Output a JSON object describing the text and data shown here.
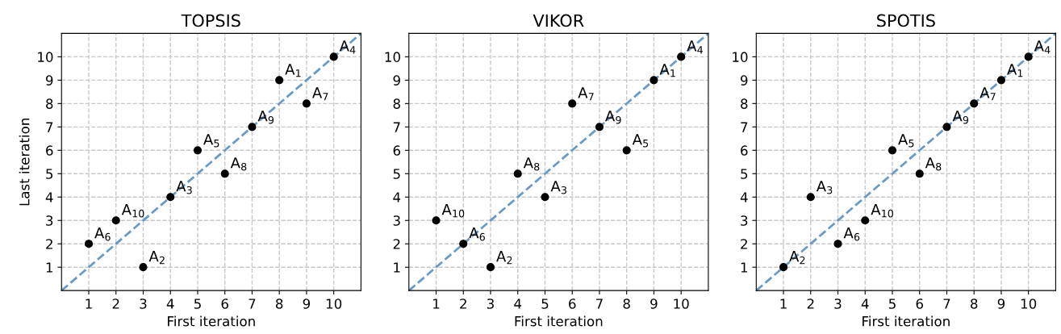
{
  "chart_data": [
    {
      "type": "scatter",
      "title": "TOPSIS",
      "xlabel": "First iteration",
      "ylabel": "Last iteration",
      "xlim": [
        0,
        11
      ],
      "ylim": [
        0,
        11
      ],
      "xticks": [
        1,
        2,
        3,
        4,
        5,
        6,
        7,
        8,
        9,
        10
      ],
      "yticks": [
        1,
        2,
        3,
        4,
        5,
        6,
        7,
        8,
        9,
        10
      ],
      "grid": true,
      "marker": "circle",
      "series": [
        {
          "type": "line",
          "color": "#6a9bc6",
          "line_style": "dashed",
          "marker": "none",
          "x": [
            0,
            11
          ],
          "values": [
            0,
            11
          ]
        },
        {
          "color": "#000000",
          "x": [
            1,
            2,
            3,
            4,
            5,
            6,
            7,
            8,
            9,
            10
          ],
          "values": [
            2,
            3,
            1,
            4,
            6,
            5,
            7,
            9,
            8,
            10
          ]
        }
      ],
      "annotations": [
        {
          "text": "A$_{6}$",
          "x": 1,
          "y": 2
        },
        {
          "text": "A$_{10}$",
          "x": 2,
          "y": 3
        },
        {
          "text": "A$_{2}$",
          "x": 3,
          "y": 1
        },
        {
          "text": "A$_{3}$",
          "x": 4,
          "y": 4
        },
        {
          "text": "A$_{5}$",
          "x": 5,
          "y": 6
        },
        {
          "text": "A$_{8}$",
          "x": 6,
          "y": 5
        },
        {
          "text": "A$_{9}$",
          "x": 7,
          "y": 7
        },
        {
          "text": "A$_{1}$",
          "x": 8,
          "y": 9
        },
        {
          "text": "A$_{7}$",
          "x": 9,
          "y": 8
        },
        {
          "text": "A$_{4}$",
          "x": 10,
          "y": 10
        }
      ]
    },
    {
      "type": "scatter",
      "title": "VIKOR",
      "xlabel": "First iteration",
      "xlim": [
        0,
        11
      ],
      "ylim": [
        0,
        11
      ],
      "xticks": [
        1,
        2,
        3,
        4,
        5,
        6,
        7,
        8,
        9,
        10
      ],
      "yticks": [
        1,
        2,
        3,
        4,
        5,
        6,
        7,
        8,
        9,
        10
      ],
      "grid": true,
      "marker": "circle",
      "series": [
        {
          "type": "line",
          "color": "#6a9bc6",
          "line_style": "dashed",
          "marker": "none",
          "x": [
            0,
            11
          ],
          "values": [
            0,
            11
          ]
        },
        {
          "color": "#000000",
          "x": [
            1,
            2,
            3,
            4,
            5,
            6,
            7,
            8,
            9,
            10
          ],
          "values": [
            3,
            2,
            1,
            5,
            4,
            8,
            7,
            6,
            9,
            10
          ]
        }
      ],
      "annotations": [
        {
          "text": "A$_{10}$",
          "x": 1,
          "y": 3
        },
        {
          "text": "A$_{6}$",
          "x": 2,
          "y": 2
        },
        {
          "text": "A$_{2}$",
          "x": 3,
          "y": 1
        },
        {
          "text": "A$_{8}$",
          "x": 4,
          "y": 5
        },
        {
          "text": "A$_{3}$",
          "x": 5,
          "y": 4
        },
        {
          "text": "A$_{7}$",
          "x": 6,
          "y": 8
        },
        {
          "text": "A$_{9}$",
          "x": 7,
          "y": 7
        },
        {
          "text": "A$_{5}$",
          "x": 8,
          "y": 6
        },
        {
          "text": "A$_{1}$",
          "x": 9,
          "y": 9
        },
        {
          "text": "A$_{4}$",
          "x": 10,
          "y": 10
        }
      ]
    },
    {
      "type": "scatter",
      "title": "SPOTIS",
      "xlabel": "First iteration",
      "xlim": [
        0,
        11
      ],
      "ylim": [
        0,
        11
      ],
      "xticks": [
        1,
        2,
        3,
        4,
        5,
        6,
        7,
        8,
        9,
        10
      ],
      "yticks": [
        1,
        2,
        3,
        4,
        5,
        6,
        7,
        8,
        9,
        10
      ],
      "grid": true,
      "marker": "circle",
      "series": [
        {
          "type": "line",
          "color": "#6a9bc6",
          "line_style": "dashed",
          "marker": "none",
          "x": [
            0,
            11
          ],
          "values": [
            0,
            11
          ]
        },
        {
          "color": "#000000",
          "x": [
            1,
            2,
            3,
            4,
            5,
            6,
            7,
            8,
            9,
            10
          ],
          "values": [
            1,
            4,
            2,
            3,
            6,
            5,
            7,
            8,
            9,
            10
          ]
        }
      ],
      "annotations": [
        {
          "text": "A$_{2}$",
          "x": 1,
          "y": 1
        },
        {
          "text": "A$_{3}$",
          "x": 2,
          "y": 4
        },
        {
          "text": "A$_{6}$",
          "x": 3,
          "y": 2
        },
        {
          "text": "A$_{10}$",
          "x": 4,
          "y": 3
        },
        {
          "text": "A$_{5}$",
          "x": 5,
          "y": 6
        },
        {
          "text": "A$_{8}$",
          "x": 6,
          "y": 5
        },
        {
          "text": "A$_{9}$",
          "x": 7,
          "y": 7
        },
        {
          "text": "A$_{7}$",
          "x": 8,
          "y": 8
        },
        {
          "text": "A$_{1}$",
          "x": 9,
          "y": 9
        },
        {
          "text": "A$_{4}$",
          "x": 10,
          "y": 10
        }
      ]
    }
  ]
}
